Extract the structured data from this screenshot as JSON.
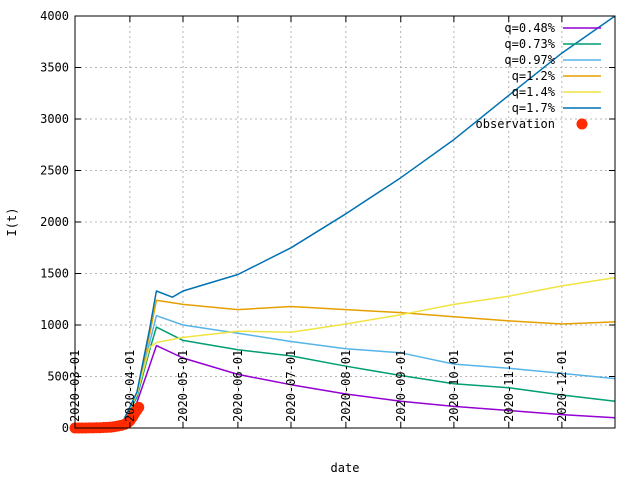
{
  "chart_data": {
    "type": "line",
    "xlabel": "date",
    "ylabel": "I(t)",
    "xlim": [
      "2020-03-01",
      "2020-12-31"
    ],
    "ylim": [
      0,
      4000
    ],
    "grid": true,
    "legend_position": "top-right",
    "x_ticks": [
      "2020-03-01",
      "2020-04-01",
      "2020-05-01",
      "2020-06-01",
      "2020-07-01",
      "2020-08-01",
      "2020-09-01",
      "2020-10-01",
      "2020-11-01",
      "2020-12-01"
    ],
    "y_ticks": [
      0,
      500,
      1000,
      1500,
      2000,
      2500,
      3000,
      3500,
      4000
    ],
    "series": [
      {
        "name": "q=0.48%",
        "color": "#9400d3",
        "x": [
          "2020-03-01",
          "2020-03-21",
          "2020-03-28",
          "2020-04-05",
          "2020-04-12",
          "2020-04-16",
          "2020-05-01",
          "2020-06-01",
          "2020-07-01",
          "2020-08-01",
          "2020-09-01",
          "2020-10-01",
          "2020-11-01",
          "2020-12-01",
          "2020-12-31"
        ],
        "y": [
          0,
          10,
          60,
          250,
          600,
          800,
          680,
          520,
          420,
          330,
          260,
          210,
          170,
          130,
          100
        ]
      },
      {
        "name": "q=0.73%",
        "color": "#009e73",
        "x": [
          "2020-03-01",
          "2020-03-21",
          "2020-03-28",
          "2020-04-05",
          "2020-04-12",
          "2020-04-16",
          "2020-05-01",
          "2020-06-01",
          "2020-07-01",
          "2020-08-01",
          "2020-09-01",
          "2020-10-01",
          "2020-11-01",
          "2020-12-01",
          "2020-12-31"
        ],
        "y": [
          0,
          10,
          60,
          300,
          750,
          980,
          850,
          760,
          700,
          600,
          510,
          430,
          390,
          320,
          260
        ]
      },
      {
        "name": "q=0.97%",
        "color": "#56b4e9",
        "x": [
          "2020-03-01",
          "2020-03-21",
          "2020-03-28",
          "2020-04-05",
          "2020-04-12",
          "2020-04-16",
          "2020-05-01",
          "2020-06-01",
          "2020-07-01",
          "2020-08-01",
          "2020-09-01",
          "2020-10-01",
          "2020-11-01",
          "2020-12-01",
          "2020-12-31"
        ],
        "y": [
          0,
          10,
          60,
          320,
          820,
          1090,
          1000,
          920,
          840,
          770,
          730,
          620,
          580,
          530,
          480
        ]
      },
      {
        "name": "q=1.2%",
        "color": "#e69f00",
        "x": [
          "2020-03-01",
          "2020-03-21",
          "2020-03-28",
          "2020-04-05",
          "2020-04-12",
          "2020-04-16",
          "2020-05-01",
          "2020-06-01",
          "2020-07-01",
          "2020-08-01",
          "2020-09-01",
          "2020-10-01",
          "2020-11-01",
          "2020-12-01",
          "2020-12-31"
        ],
        "y": [
          0,
          10,
          60,
          340,
          900,
          1240,
          1200,
          1150,
          1180,
          1150,
          1120,
          1080,
          1040,
          1010,
          1030
        ]
      },
      {
        "name": "q=1.4%",
        "color": "#f0e442",
        "x": [
          "2020-03-01",
          "2020-03-21",
          "2020-03-28",
          "2020-04-05",
          "2020-04-12",
          "2020-04-16",
          "2020-05-01",
          "2020-06-01",
          "2020-07-01",
          "2020-08-01",
          "2020-09-01",
          "2020-10-01",
          "2020-11-01",
          "2020-12-01",
          "2020-12-31"
        ],
        "y": [
          0,
          10,
          60,
          330,
          780,
          830,
          880,
          940,
          930,
          1010,
          1100,
          1200,
          1280,
          1380,
          1460
        ]
      },
      {
        "name": "q=1.7%",
        "color": "#0072b2",
        "x": [
          "2020-03-01",
          "2020-03-21",
          "2020-03-28",
          "2020-04-05",
          "2020-04-12",
          "2020-04-16",
          "2020-04-25",
          "2020-05-01",
          "2020-06-01",
          "2020-07-01",
          "2020-08-01",
          "2020-09-01",
          "2020-10-01",
          "2020-11-01",
          "2020-12-01",
          "2020-12-31"
        ],
        "y": [
          0,
          10,
          60,
          350,
          950,
          1330,
          1270,
          1330,
          1490,
          1750,
          2080,
          2430,
          2800,
          3230,
          3640,
          4000
        ]
      }
    ],
    "observation": {
      "name": "observation",
      "color": "#ff2a00",
      "x": [
        "2020-03-01",
        "2020-03-03",
        "2020-03-05",
        "2020-03-07",
        "2020-03-09",
        "2020-03-11",
        "2020-03-13",
        "2020-03-15",
        "2020-03-17",
        "2020-03-19",
        "2020-03-21",
        "2020-03-23",
        "2020-03-25",
        "2020-03-27",
        "2020-03-29",
        "2020-03-31",
        "2020-04-01",
        "2020-04-02",
        "2020-04-03",
        "2020-04-04",
        "2020-04-05",
        "2020-04-06"
      ],
      "y": [
        0,
        0,
        0,
        0,
        1,
        1,
        2,
        3,
        5,
        6,
        8,
        12,
        18,
        25,
        35,
        55,
        70,
        95,
        120,
        150,
        175,
        200
      ]
    }
  }
}
